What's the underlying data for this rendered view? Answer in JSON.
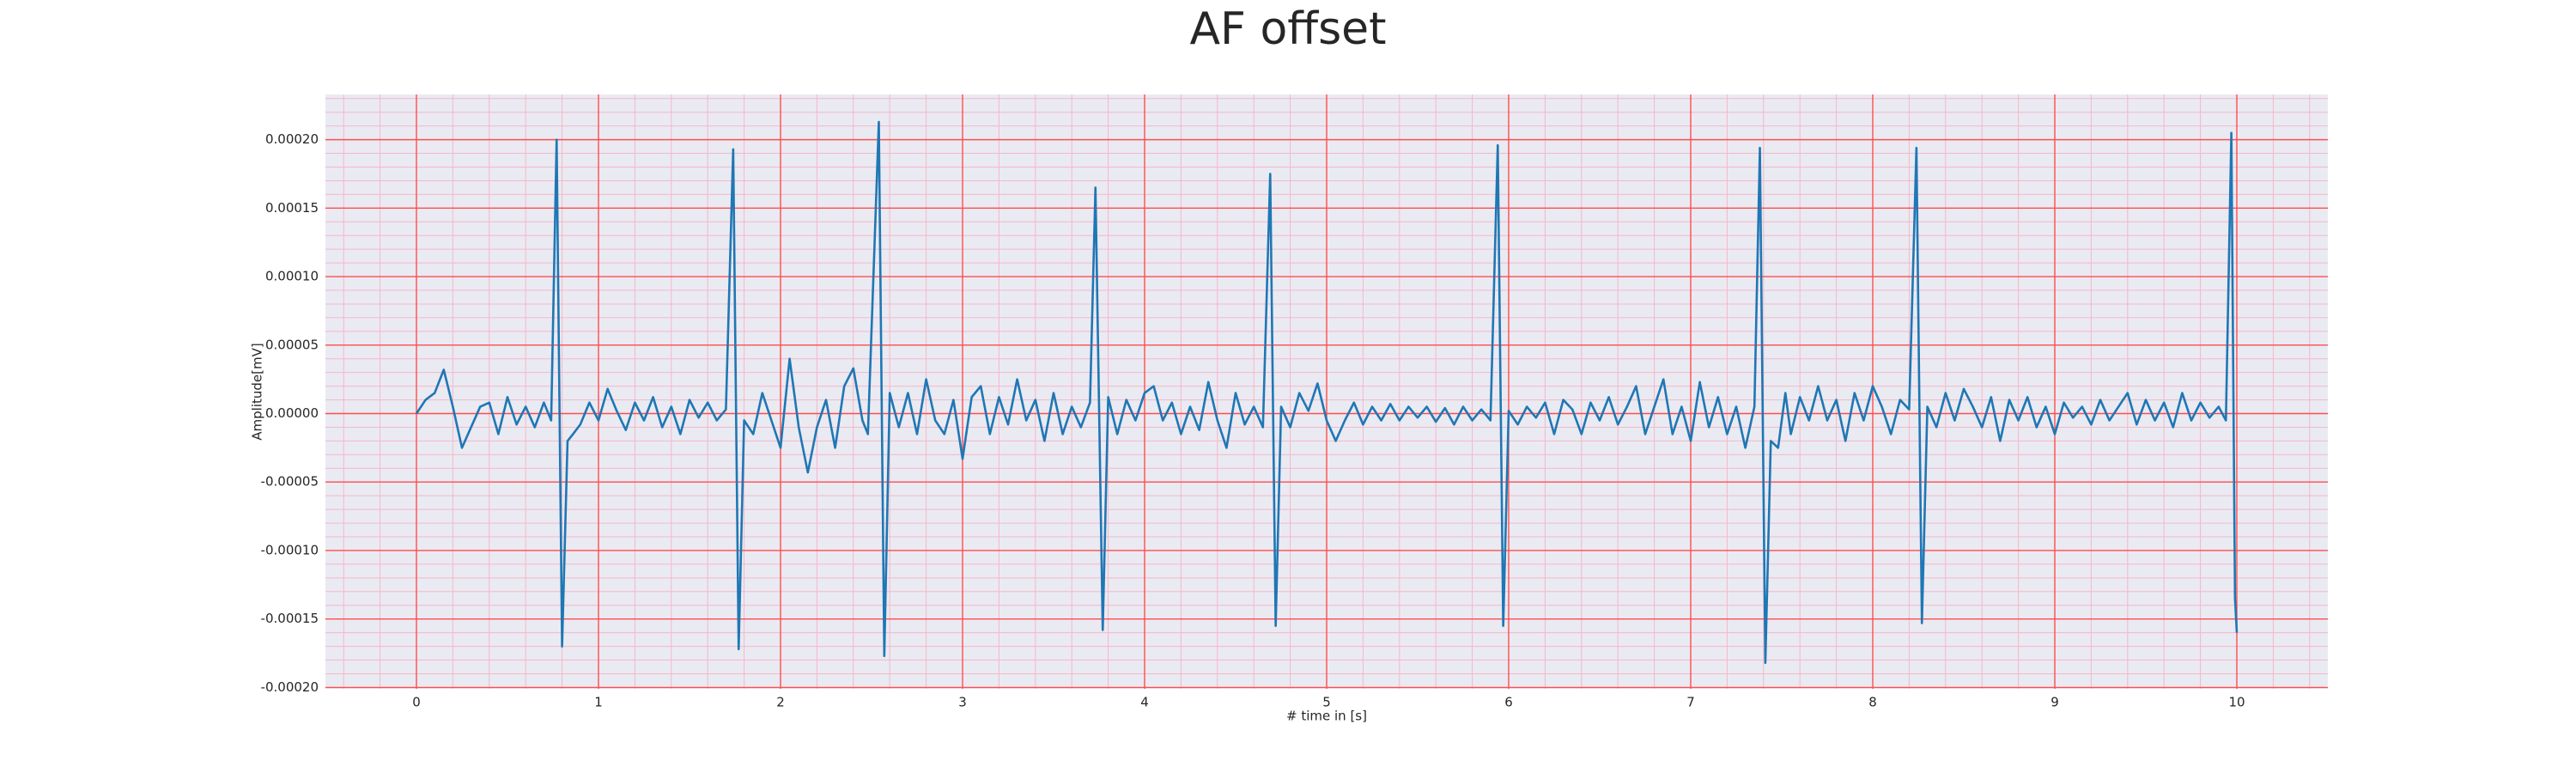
{
  "chart_data": {
    "type": "line",
    "title": "AF offset",
    "xlabel": "# time in [s]",
    "ylabel": "Amplitude[mV]",
    "xlim": [
      -0.5,
      10.5
    ],
    "ylim": [
      -0.000201,
      0.000233
    ],
    "xticks": [
      0,
      1,
      2,
      3,
      4,
      5,
      6,
      7,
      8,
      9,
      10
    ],
    "yticks": [
      {
        "value": -0.0002,
        "label": "-0.00020"
      },
      {
        "value": -0.00015,
        "label": "-0.00015"
      },
      {
        "value": -0.0001,
        "label": "-0.00010"
      },
      {
        "value": -5e-05,
        "label": "-0.00005"
      },
      {
        "value": 0,
        "label": "0.00000"
      },
      {
        "value": 5e-05,
        "label": "0.00005"
      },
      {
        "value": 0.0001,
        "label": "0.00010"
      },
      {
        "value": 0.00015,
        "label": "0.00015"
      },
      {
        "value": 0.0002,
        "label": "0.00020"
      }
    ],
    "grid": true,
    "minor_grid": true,
    "grid_color": "#ff4d4d",
    "minor_grid_color": "#f4b8c8",
    "background": "#eaeaf2",
    "color": "#1f77b4",
    "x": [
      0,
      0.05,
      0.1,
      0.15,
      0.2,
      0.25,
      0.3,
      0.35,
      0.4,
      0.45,
      0.5,
      0.55,
      0.6,
      0.65,
      0.7,
      0.74,
      0.77,
      0.8,
      0.83,
      0.86,
      0.9,
      0.95,
      1.0,
      1.05,
      1.1,
      1.15,
      1.2,
      1.25,
      1.3,
      1.35,
      1.4,
      1.45,
      1.5,
      1.55,
      1.6,
      1.65,
      1.7,
      1.74,
      1.77,
      1.8,
      1.85,
      1.9,
      1.95,
      2.0,
      2.05,
      2.1,
      2.15,
      2.2,
      2.25,
      2.3,
      2.35,
      2.4,
      2.45,
      2.48,
      2.54,
      2.57,
      2.6,
      2.65,
      2.7,
      2.75,
      2.8,
      2.85,
      2.9,
      2.95,
      3.0,
      3.05,
      3.1,
      3.15,
      3.2,
      3.25,
      3.3,
      3.35,
      3.4,
      3.45,
      3.5,
      3.55,
      3.6,
      3.65,
      3.7,
      3.73,
      3.77,
      3.8,
      3.85,
      3.9,
      3.95,
      4.0,
      4.05,
      4.1,
      4.15,
      4.2,
      4.25,
      4.3,
      4.35,
      4.4,
      4.45,
      4.5,
      4.55,
      4.6,
      4.65,
      4.69,
      4.72,
      4.75,
      4.8,
      4.85,
      4.9,
      4.95,
      5.0,
      5.05,
      5.1,
      5.15,
      5.2,
      5.25,
      5.3,
      5.35,
      5.4,
      5.45,
      5.5,
      5.55,
      5.6,
      5.65,
      5.7,
      5.75,
      5.8,
      5.85,
      5.9,
      5.94,
      5.97,
      6.0,
      6.05,
      6.1,
      6.15,
      6.2,
      6.25,
      6.3,
      6.35,
      6.4,
      6.45,
      6.5,
      6.55,
      6.6,
      6.65,
      6.7,
      6.75,
      6.8,
      6.85,
      6.9,
      6.95,
      7.0,
      7.05,
      7.1,
      7.15,
      7.2,
      7.25,
      7.3,
      7.35,
      7.38,
      7.41,
      7.44,
      7.48,
      7.52,
      7.55,
      7.6,
      7.65,
      7.7,
      7.75,
      7.8,
      7.85,
      7.9,
      7.95,
      8.0,
      8.05,
      8.1,
      8.15,
      8.2,
      8.24,
      8.27,
      8.3,
      8.35,
      8.4,
      8.45,
      8.5,
      8.55,
      8.6,
      8.65,
      8.7,
      8.75,
      8.8,
      8.85,
      8.9,
      8.95,
      9.0,
      9.05,
      9.1,
      9.15,
      9.2,
      9.25,
      9.3,
      9.35,
      9.4,
      9.45,
      9.5,
      9.55,
      9.6,
      9.65,
      9.7,
      9.75,
      9.8,
      9.85,
      9.9,
      9.94,
      9.97,
      9.99,
      10.0
    ],
    "values": [
      0,
      1e-05,
      1.5e-05,
      3.2e-05,
      5e-06,
      -2.5e-05,
      -1e-05,
      5e-06,
      8e-06,
      -1.5e-05,
      1.2e-05,
      -8e-06,
      5e-06,
      -1e-05,
      8e-06,
      -5e-06,
      0.0002,
      -0.00017,
      -2e-05,
      -1.5e-05,
      -8e-06,
      8e-06,
      -5e-06,
      1.8e-05,
      2e-06,
      -1.2e-05,
      8e-06,
      -5e-06,
      1.2e-05,
      -1e-05,
      5e-06,
      -1.5e-05,
      1e-05,
      -3e-06,
      8e-06,
      -5e-06,
      3e-06,
      0.000193,
      -0.000172,
      -5e-06,
      -1.5e-05,
      1.5e-05,
      -5e-06,
      -2.5e-05,
      4e-05,
      -1e-05,
      -4.3e-05,
      -1e-05,
      1e-05,
      -2.5e-05,
      2e-05,
      3.3e-05,
      -5e-06,
      -1.5e-05,
      0.000213,
      -0.000177,
      1.5e-05,
      -1e-05,
      1.5e-05,
      -1.5e-05,
      2.5e-05,
      -5e-06,
      -1.5e-05,
      1e-05,
      -3.3e-05,
      1.2e-05,
      2e-05,
      -1.5e-05,
      1.2e-05,
      -8e-06,
      2.5e-05,
      -5e-06,
      1e-05,
      -2e-05,
      1.5e-05,
      -1.5e-05,
      5e-06,
      -1e-05,
      8e-06,
      0.000165,
      -0.000158,
      1.2e-05,
      -1.5e-05,
      1e-05,
      -5e-06,
      1.5e-05,
      2e-05,
      -5e-06,
      8e-06,
      -1.5e-05,
      5e-06,
      -1.2e-05,
      2.3e-05,
      -5e-06,
      -2.5e-05,
      1.5e-05,
      -8e-06,
      5e-06,
      -1e-05,
      0.000175,
      -0.000155,
      5e-06,
      -1e-05,
      1.5e-05,
      2e-06,
      2.2e-05,
      -5e-06,
      -2e-05,
      -5e-06,
      8e-06,
      -8e-06,
      5e-06,
      -5e-06,
      7e-06,
      -5e-06,
      5e-06,
      -3e-06,
      5e-06,
      -6e-06,
      4e-06,
      -8e-06,
      5e-06,
      -5e-06,
      3e-06,
      -5e-06,
      0.000196,
      -0.000155,
      2e-06,
      -8e-06,
      5e-06,
      -3e-06,
      8e-06,
      -1.5e-05,
      1e-05,
      3e-06,
      -1.5e-05,
      8e-06,
      -5e-06,
      1.2e-05,
      -8e-06,
      5e-06,
      2e-05,
      -1.5e-05,
      5e-06,
      2.5e-05,
      -1.5e-05,
      5e-06,
      -2e-05,
      2.3e-05,
      -1e-05,
      1.2e-05,
      -1.5e-05,
      5e-06,
      -2.5e-05,
      5e-06,
      0.000194,
      -0.000182,
      -2e-05,
      -2.5e-05,
      1.5e-05,
      -1.5e-05,
      1.2e-05,
      -5e-06,
      2e-05,
      -5e-06,
      1e-05,
      -2e-05,
      1.5e-05,
      -5e-06,
      2e-05,
      5e-06,
      -1.5e-05,
      1e-05,
      3e-06,
      0.000194,
      -0.000153,
      5e-06,
      -1e-05,
      1.5e-05,
      -5e-06,
      1.8e-05,
      5e-06,
      -1e-05,
      1.2e-05,
      -2e-05,
      1e-05,
      -5e-06,
      1.2e-05,
      -1e-05,
      5e-06,
      -1.5e-05,
      8e-06,
      -3e-06,
      5e-06,
      -8e-06,
      1e-05,
      -5e-06,
      5e-06,
      1.5e-05,
      -8e-06,
      1e-05,
      -5e-06,
      8e-06,
      -1e-05,
      1.5e-05,
      -5e-06,
      8e-06,
      -3e-06,
      5e-06,
      -5e-06,
      0.000205,
      -0.000135,
      -0.00016
    ]
  }
}
